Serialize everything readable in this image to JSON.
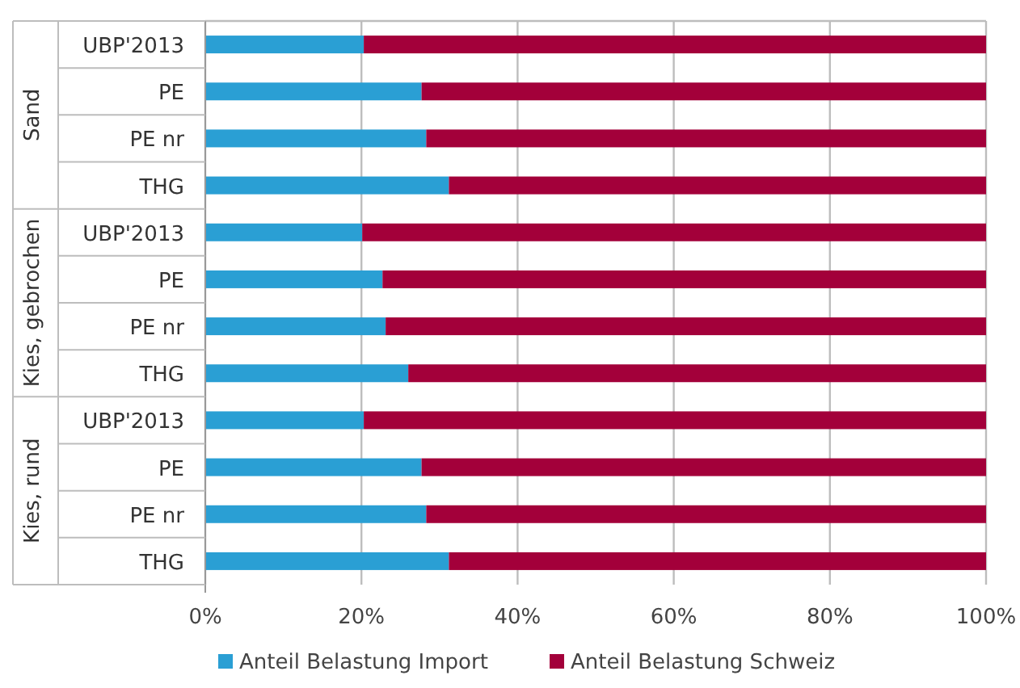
{
  "chart_data": {
    "type": "bar",
    "orientation": "horizontal",
    "stacked": true,
    "categories": [
      "UBP'2013",
      "PE",
      "PE nr",
      "THG",
      "UBP'2013",
      "PE",
      "PE nr",
      "THG",
      "UBP'2013",
      "PE",
      "PE nr",
      "THG"
    ],
    "series": [
      {
        "name": "Anteil Belastung Import",
        "color": "#2a9fd4",
        "values": [
          20.3,
          27.7,
          28.3,
          31.2,
          20.1,
          22.7,
          23.1,
          26.0,
          20.3,
          27.7,
          28.3,
          31.2
        ]
      },
      {
        "name": "Anteil Belastung Schweiz",
        "color": "#a3003a",
        "values": [
          79.7,
          72.3,
          71.7,
          68.8,
          79.9,
          77.3,
          76.9,
          74.0,
          79.7,
          72.3,
          71.7,
          68.8
        ]
      }
    ],
    "annotations": [
      "Sand",
      "Kies, gebrochen",
      "Kies, rund"
    ],
    "xlim": [
      0,
      100
    ],
    "xticks": [
      {
        "value": 0,
        "label": "0%"
      },
      {
        "value": 20,
        "label": "20%"
      },
      {
        "value": 40,
        "label": "40%"
      },
      {
        "value": 60,
        "label": "60%"
      },
      {
        "value": 80,
        "label": "80%"
      },
      {
        "value": 100,
        "label": "100%"
      }
    ],
    "grid": "x",
    "legend": "bottom"
  }
}
